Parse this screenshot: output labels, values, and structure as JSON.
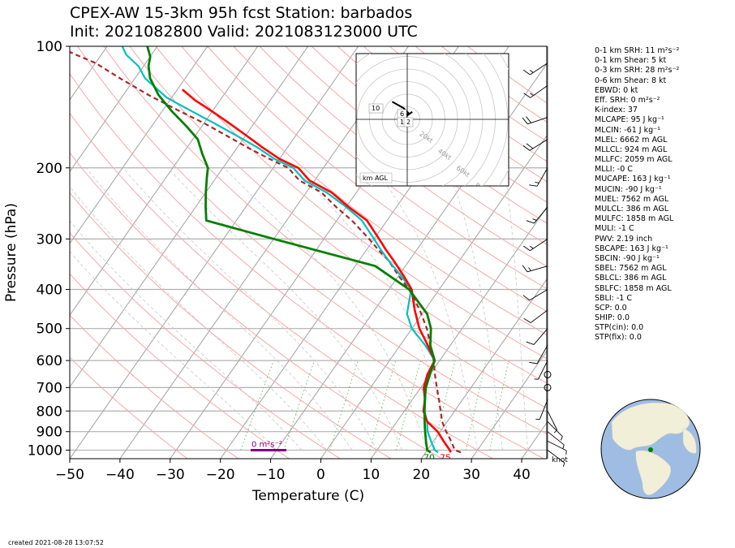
{
  "title_line1": "CPEX-AW 15-3km  95h fcst  Station: barbados",
  "title_line2": "Init: 2021082800  Valid: 2021083123000 UTC",
  "created": "created 2021-08-28 13:07:52",
  "indices": [
    "0-1 km SRH: 11 m²s⁻²",
    "0-1 km Shear: 5 kt",
    "0-3 km SRH: 28 m²s⁻²",
    "0-6 km Shear: 8 kt",
    "EBWD: 0 kt",
    "Eff. SRH: 0 m²s⁻²",
    "K-index: 37",
    "MLCAPE: 95 J kg⁻¹",
    "MLCIN: -61 J kg⁻¹",
    "MLEL: 6662 m AGL",
    "MLLCL: 924 m AGL",
    "MLLFC: 2059 m AGL",
    "MLLI: -0 C",
    "MUCAPE: 163 J kg⁻¹",
    "MUCIN: -90 J kg⁻¹",
    "MUEL: 7562 m AGL",
    "MULCL: 386 m AGL",
    "MULFC: 1858 m AGL",
    "MULI: -1 C",
    "PWV: 2.19 inch",
    "SBCAPE: 163 J kg⁻¹",
    "SBCIN: -90 J kg⁻¹",
    "SBEL: 7562 m AGL",
    "SBLCL: 386 m AGL",
    "SBLFC: 1858 m AGL",
    "SBLI: -1 C",
    "SCP: 0.0",
    "SHIP: 0.0",
    "STP(cin): 0.0",
    "STP(fix): 0.0"
  ],
  "chart_data": {
    "type": "line",
    "subtype": "skew-T log-P",
    "xlabel": "Temperature (C)",
    "ylabel": "Pressure (hPa)",
    "xlim": [
      -50,
      45
    ],
    "ylim": [
      1050,
      100
    ],
    "x_ticks": [
      -50,
      -40,
      -30,
      -20,
      -10,
      0,
      10,
      20,
      30,
      40
    ],
    "y_ticks": [
      1000,
      900,
      800,
      700,
      600,
      500,
      400,
      300,
      200,
      100
    ],
    "y_scale": "log",
    "grid": true,
    "colors": {
      "temperature": "#ff0000",
      "virtual_temperature": "#00bfbf",
      "dewpoint": "#008000",
      "parcel": "#a52a2a",
      "srh_bar": "#800080",
      "dry_adiabats": "#f4a8a8",
      "isotherms": "#a0a0a0"
    },
    "series": [
      {
        "key": "temperature",
        "points": [
          [
            25,
            1013
          ],
          [
            24.5,
            1000
          ],
          [
            22,
            950
          ],
          [
            19.5,
            900
          ],
          [
            16,
            850
          ],
          [
            13.8,
            800
          ],
          [
            12.5,
            750
          ],
          [
            10.6,
            700
          ],
          [
            9.5,
            650
          ],
          [
            9,
            600
          ],
          [
            5.5,
            550
          ],
          [
            1.5,
            500
          ],
          [
            -2,
            450
          ],
          [
            -5.5,
            400
          ],
          [
            -9,
            370
          ],
          [
            -13,
            340
          ],
          [
            -16,
            320
          ],
          [
            -19,
            300
          ],
          [
            -24,
            270
          ],
          [
            -29.5,
            250
          ],
          [
            -35,
            230
          ],
          [
            -41,
            215
          ],
          [
            -45,
            200
          ],
          [
            -50,
            190
          ],
          [
            -55,
            178
          ],
          [
            -60,
            166
          ],
          [
            -65,
            155
          ],
          [
            -70,
            145
          ],
          [
            -75,
            136
          ],
          [
            -79,
            128
          ]
        ]
      },
      {
        "key": "virtual_temperature",
        "points": [
          [
            22.5,
            1013
          ],
          [
            21.5,
            1000
          ],
          [
            19.5,
            950
          ],
          [
            17.5,
            900
          ],
          [
            16,
            850
          ],
          [
            14,
            800
          ],
          [
            12.6,
            750
          ],
          [
            10.8,
            700
          ],
          [
            9.6,
            650
          ],
          [
            9,
            600
          ],
          [
            5,
            550
          ],
          [
            0,
            500
          ],
          [
            -3,
            460
          ],
          [
            -5.6,
            400
          ],
          [
            -9.5,
            370
          ],
          [
            -14,
            340
          ],
          [
            -17,
            320
          ],
          [
            -20,
            300
          ],
          [
            -25,
            270
          ],
          [
            -30,
            250
          ],
          [
            -36,
            230
          ],
          [
            -42,
            215
          ],
          [
            -46,
            200
          ],
          [
            -51,
            190
          ],
          [
            -56,
            178
          ],
          [
            -62,
            166
          ],
          [
            -68,
            155
          ],
          [
            -74,
            145
          ],
          [
            -81,
            134
          ],
          [
            -88,
            120
          ],
          [
            -91,
            112
          ],
          [
            -95,
            105
          ],
          [
            -97,
            100
          ]
        ]
      },
      {
        "key": "dewpoint",
        "points": [
          [
            21,
            1013
          ],
          [
            20,
            1000
          ],
          [
            18.5,
            950
          ],
          [
            17,
            900
          ],
          [
            15.5,
            850
          ],
          [
            14,
            800
          ],
          [
            12.5,
            750
          ],
          [
            11,
            700
          ],
          [
            10,
            650
          ],
          [
            9,
            600
          ],
          [
            6,
            550
          ],
          [
            3.8,
            500
          ],
          [
            1,
            460
          ],
          [
            -6,
            400
          ],
          [
            -16,
            350
          ],
          [
            -40,
            300
          ],
          [
            -56,
            270
          ],
          [
            -58,
            250
          ],
          [
            -60,
            230
          ],
          [
            -62,
            210
          ],
          [
            -63,
            200
          ],
          [
            -66,
            185
          ],
          [
            -69,
            170
          ],
          [
            -73,
            158
          ],
          [
            -78,
            145
          ],
          [
            -83,
            132
          ],
          [
            -87,
            120
          ],
          [
            -89,
            112
          ],
          [
            -90,
            106
          ],
          [
            -92,
            100
          ]
        ]
      },
      {
        "key": "parcel",
        "points": [
          [
            27,
            1013
          ],
          [
            25.5,
            1000
          ],
          [
            23.5,
            950
          ],
          [
            21.2,
            900
          ],
          [
            19,
            850
          ],
          [
            17.2,
            800
          ],
          [
            15.3,
            750
          ],
          [
            13.2,
            700
          ],
          [
            11,
            650
          ],
          [
            8.8,
            600
          ],
          [
            6,
            550
          ],
          [
            3,
            500
          ],
          [
            -1,
            450
          ],
          [
            -6,
            400
          ],
          [
            -10,
            370
          ],
          [
            -14,
            340
          ],
          [
            -17.5,
            320
          ],
          [
            -21,
            300
          ],
          [
            -27,
            270
          ],
          [
            -32,
            250
          ],
          [
            -37,
            230
          ],
          [
            -43,
            215
          ],
          [
            -47,
            200
          ],
          [
            -52,
            190
          ],
          [
            -58,
            178
          ],
          [
            -64,
            166
          ],
          [
            -70,
            155
          ],
          [
            -77,
            144
          ],
          [
            -85,
            132
          ],
          [
            -93,
            120
          ],
          [
            -100,
            110
          ],
          [
            -105,
            105
          ],
          [
            -110,
            100
          ]
        ]
      }
    ],
    "annotations": {
      "srh": "0 m²s⁻²",
      "surface_t": "75",
      "surface_td": "70",
      "wind_units": "knot"
    },
    "hodograph": {
      "range_rings": [
        "20kt",
        "40kt",
        "60kt",
        "80kt"
      ],
      "height_labels": [
        "10",
        "6",
        "1",
        "2"
      ],
      "label": "km AGL",
      "trace": [
        [
          4,
          6
        ],
        [
          0,
          3
        ],
        [
          -2,
          1
        ],
        [
          -5,
          0
        ],
        [
          -3,
          3
        ],
        [
          1,
          5
        ],
        [
          -3,
          9
        ],
        [
          -12,
          14
        ]
      ]
    },
    "wind_barbs_knots": [
      {
        "p": 1000,
        "u": -4,
        "v": 3
      },
      {
        "p": 950,
        "u": -6,
        "v": 3
      },
      {
        "p": 900,
        "u": -5,
        "v": 4
      },
      {
        "p": 850,
        "u": -3,
        "v": 3
      },
      {
        "p": 800,
        "u": -2,
        "v": 4
      },
      {
        "p": 750,
        "u": 2,
        "v": 5
      },
      {
        "p": 700,
        "u": 0,
        "v": 0
      },
      {
        "p": 650,
        "u": 0,
        "v": 0
      },
      {
        "p": 600,
        "u": 3,
        "v": 6
      },
      {
        "p": 550,
        "u": 4,
        "v": 7
      },
      {
        "p": 500,
        "u": 6,
        "v": 7
      },
      {
        "p": 450,
        "u": 8,
        "v": 6
      },
      {
        "p": 400,
        "u": 10,
        "v": 6
      },
      {
        "p": 350,
        "u": 14,
        "v": 4
      },
      {
        "p": 300,
        "u": 12,
        "v": 8
      },
      {
        "p": 250,
        "u": 10,
        "v": 12
      },
      {
        "p": 200,
        "u": 8,
        "v": 14
      },
      {
        "p": 170,
        "u": 16,
        "v": 10
      },
      {
        "p": 150,
        "u": 18,
        "v": 6
      },
      {
        "p": 125,
        "u": 14,
        "v": 10
      },
      {
        "p": 110,
        "u": 12,
        "v": 8
      }
    ]
  }
}
